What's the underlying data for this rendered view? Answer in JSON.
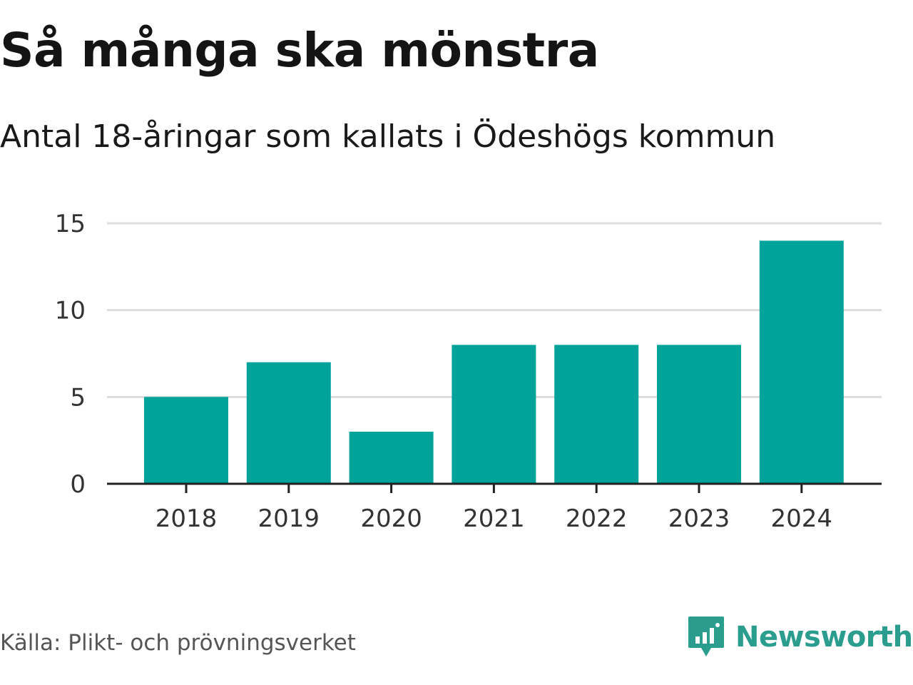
{
  "header": {
    "title": "Så många ska mönstra",
    "subtitle": "Antal 18-åringar som kallats i Ödeshögs kommun"
  },
  "footer": {
    "source": "Källa: Plikt- och prövningsverket",
    "brand": "Newsworthy"
  },
  "colors": {
    "bar": "#00a39a",
    "grid": "#dddddd",
    "axis": "#222222",
    "brand": "#2a9d8f"
  },
  "chart_data": {
    "type": "bar",
    "categories": [
      "2018",
      "2019",
      "2020",
      "2021",
      "2022",
      "2023",
      "2024"
    ],
    "values": [
      5,
      7,
      3,
      8,
      8,
      8,
      14
    ],
    "ylim": [
      0,
      15
    ],
    "yticks": [
      0,
      5,
      10,
      15
    ],
    "grid": true,
    "legend": "none"
  }
}
